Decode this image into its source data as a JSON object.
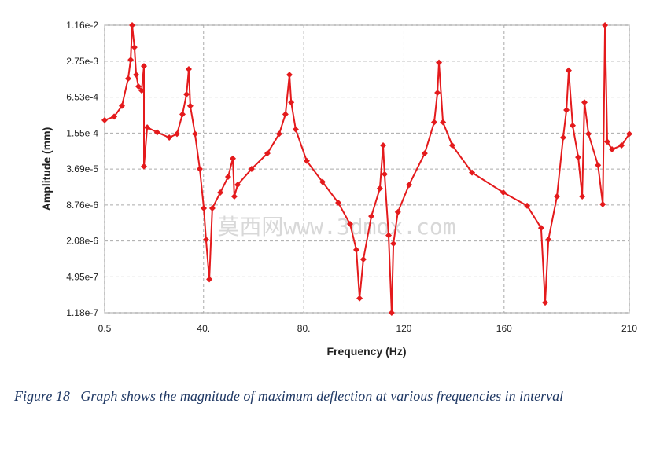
{
  "chart_data": {
    "type": "line",
    "xlabel": "Frequency (Hz)",
    "ylabel": "Amplitude (mm)",
    "caption": "Figure 18   Graph shows the magnitude of maximum deflection at various frequencies in interval",
    "watermark": "莫西网www.3dmox.com",
    "log_y": true,
    "grid": true,
    "color": "#e41a1c",
    "xlim": [
      0.5,
      210
    ],
    "ylim": [
      1.18e-07,
      0.0116
    ],
    "xticks": [
      0.5,
      {
        "value": 40,
        "label": "40."
      },
      {
        "value": 80,
        "label": "80."
      },
      120,
      160,
      210
    ],
    "yticks": [
      {
        "value": 0.0116,
        "label": "1.16e-2"
      },
      {
        "value": 0.00275,
        "label": "2.75e-3"
      },
      {
        "value": 0.000653,
        "label": "6.53e-4"
      },
      {
        "value": 0.000155,
        "label": "1.55e-4"
      },
      {
        "value": 3.69e-05,
        "label": "3.69e-5"
      },
      {
        "value": 8.76e-06,
        "label": "8.76e-6"
      },
      {
        "value": 2.08e-06,
        "label": "2.08e-6"
      },
      {
        "value": 4.95e-07,
        "label": "4.95e-7"
      },
      {
        "value": 1.18e-07,
        "label": "1.18e-7"
      }
    ],
    "x": [
      0.5,
      4.3,
      7.4,
      9.9,
      10.9,
      11.5,
      12.4,
      13.1,
      14.0,
      15.3,
      16.2,
      16.2,
      17.5,
      21.5,
      26.3,
      29.4,
      31.6,
      33.2,
      34.1,
      34.7,
      36.6,
      38.5,
      40.1,
      41.0,
      42.3,
      43.5,
      46.7,
      49.8,
      51.7,
      52.3,
      53.6,
      59.2,
      65.5,
      70.2,
      72.7,
      74.3,
      75.0,
      76.8,
      81.2,
      87.5,
      93.8,
      98.5,
      101.0,
      102.3,
      103.8,
      107.0,
      110.4,
      111.7,
      112.3,
      113.9,
      115.1,
      115.8,
      117.6,
      122.1,
      128.3,
      132.1,
      133.4,
      134.0,
      135.6,
      139.3,
      147.2,
      159.7,
      169.2,
      174.8,
      176.4,
      177.7,
      181.1,
      183.6,
      184.9,
      185.8,
      187.4,
      189.6,
      191.2,
      192.1,
      193.7,
      197.5,
      199.4,
      200.3,
      201.2,
      203.1,
      206.9,
      210
    ],
    "values": [
      0.00026,
      0.0003,
      0.00046,
      0.00137,
      0.0029,
      0.0116,
      0.0048,
      0.0016,
      0.001,
      0.00085,
      0.00226,
      4.1e-05,
      0.000195,
      0.00016,
      0.00013,
      0.00015,
      0.00033,
      0.00073,
      0.002,
      0.00046,
      0.00015,
      3.7e-05,
      7.7e-06,
      2.2e-06,
      4.5e-07,
      7.7e-06,
      1.44e-05,
      2.7e-05,
      5.6e-05,
      1.23e-05,
      1.97e-05,
      3.7e-05,
      6.9e-05,
      0.00015,
      0.00033,
      0.0016,
      0.00053,
      0.00018,
      5.1e-05,
      2.2e-05,
      9.6e-06,
      4.1e-06,
      1.46e-06,
      2.1e-07,
      1e-06,
      5.6e-06,
      1.7e-05,
      9.5e-05,
      3e-05,
      2.6e-06,
      1.18e-07,
      1.87e-06,
      6.6e-06,
      1.97e-05,
      6.9e-05,
      0.00024,
      0.00078,
      0.0026,
      0.00024,
      9.5e-05,
      3.2e-05,
      1.44e-05,
      8.5e-06,
      3.5e-06,
      1.77e-07,
      2.2e-06,
      1.23e-05,
      0.00013,
      0.00039,
      0.0019,
      0.00021,
      5.9e-05,
      1.23e-05,
      0.00053,
      0.00015,
      4.3e-05,
      9e-06,
      0.0116,
      0.00011,
      8.1e-05,
      9.5e-05,
      0.00015
    ]
  }
}
